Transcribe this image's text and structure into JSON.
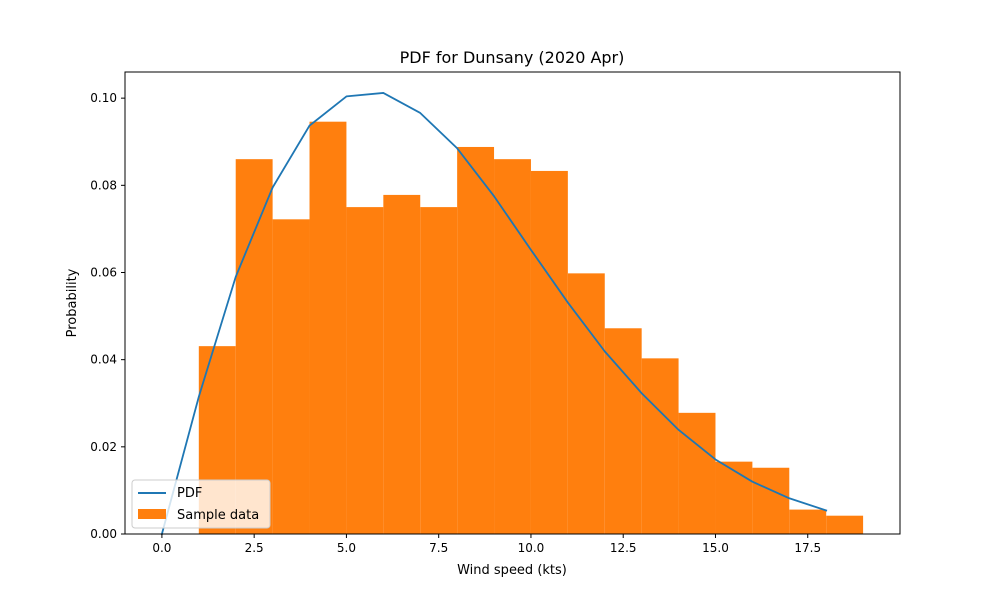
{
  "chart_data": {
    "type": "bar",
    "title": "PDF for Dunsany (2020 Apr)",
    "xlabel": "Wind speed (kts)",
    "ylabel": "Probability",
    "xlim": [
      -1.0,
      20.0
    ],
    "ylim": [
      0.0,
      0.106
    ],
    "xticks": [
      0.0,
      2.5,
      5.0,
      7.5,
      10.0,
      12.5,
      15.0,
      17.5
    ],
    "xtick_labels": [
      "0.0",
      "2.5",
      "5.0",
      "7.5",
      "10.0",
      "12.5",
      "15.0",
      "17.5"
    ],
    "yticks": [
      0.0,
      0.02,
      0.04,
      0.06,
      0.08,
      0.1
    ],
    "ytick_labels": [
      "0.00",
      "0.02",
      "0.04",
      "0.06",
      "0.08",
      "0.10"
    ],
    "grid": false,
    "legend": "lower-left",
    "histogram": {
      "name": "Sample data",
      "color": "#ff7f0e",
      "bins": [
        {
          "x0": 0,
          "x1": 1,
          "value": 0.0
        },
        {
          "x0": 1,
          "x1": 2,
          "value": 0.0431
        },
        {
          "x0": 2,
          "x1": 3,
          "value": 0.086
        },
        {
          "x0": 3,
          "x1": 4,
          "value": 0.0722
        },
        {
          "x0": 4,
          "x1": 5,
          "value": 0.0946
        },
        {
          "x0": 5,
          "x1": 6,
          "value": 0.075
        },
        {
          "x0": 6,
          "x1": 7,
          "value": 0.0778
        },
        {
          "x0": 7,
          "x1": 8,
          "value": 0.075
        },
        {
          "x0": 8,
          "x1": 9,
          "value": 0.0888
        },
        {
          "x0": 9,
          "x1": 10,
          "value": 0.086
        },
        {
          "x0": 10,
          "x1": 11,
          "value": 0.0833
        },
        {
          "x0": 11,
          "x1": 12,
          "value": 0.0598
        },
        {
          "x0": 12,
          "x1": 13,
          "value": 0.0472
        },
        {
          "x0": 13,
          "x1": 14,
          "value": 0.0403
        },
        {
          "x0": 14,
          "x1": 15,
          "value": 0.0278
        },
        {
          "x0": 15,
          "x1": 16,
          "value": 0.0166
        },
        {
          "x0": 16,
          "x1": 17,
          "value": 0.0152
        },
        {
          "x0": 17,
          "x1": 18,
          "value": 0.0056
        },
        {
          "x0": 18,
          "x1": 19,
          "value": 0.0042
        }
      ]
    },
    "series": [
      {
        "name": "PDF",
        "type": "line",
        "color": "#1f77b4",
        "x": [
          0,
          1,
          2,
          3,
          4,
          5,
          6,
          7,
          8,
          9,
          10,
          11,
          12,
          13,
          14,
          15,
          16,
          17,
          18
        ],
        "y": [
          0.0,
          0.0315,
          0.059,
          0.0795,
          0.0937,
          0.1004,
          0.1012,
          0.0966,
          0.0885,
          0.0775,
          0.0652,
          0.0531,
          0.0419,
          0.0323,
          0.0239,
          0.0171,
          0.012,
          0.0082,
          0.0054
        ]
      }
    ]
  }
}
